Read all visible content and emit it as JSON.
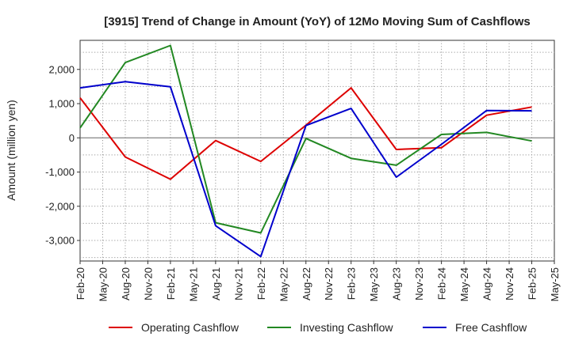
{
  "chart_data": {
    "type": "line",
    "title": "[3915]  Trend of Change in Amount (YoY) of 12Mo Moving Sum of Cashflows",
    "xlabel": "",
    "ylabel": "Amount (million yen)",
    "ylim": [
      -3600,
      2850
    ],
    "yticks": [
      2000,
      1000,
      0,
      -1000,
      -2000,
      -3000
    ],
    "ytick_labels": [
      "2,000",
      "1,000",
      "0",
      "-1,000",
      "-2,000",
      "-3,000"
    ],
    "x_labels": [
      "Feb-20",
      "May-20",
      "Aug-20",
      "Nov-20",
      "Feb-21",
      "May-21",
      "Aug-21",
      "Nov-21",
      "Feb-22",
      "May-22",
      "Aug-22",
      "Nov-22",
      "Feb-23",
      "May-23",
      "Aug-23",
      "Nov-23",
      "Feb-24",
      "May-24",
      "Aug-24",
      "Nov-24",
      "Feb-25",
      "May-25"
    ],
    "x_data_labels": [
      "Feb-20",
      "Aug-20",
      "Feb-21",
      "Aug-21",
      "Feb-22",
      "Aug-22",
      "Feb-23",
      "Aug-23",
      "Feb-24",
      "Aug-24",
      "Feb-25"
    ],
    "grid": true,
    "legend_position": "bottom",
    "series": [
      {
        "name": "Operating Cashflow",
        "color": "#dd0000",
        "values": [
          1170,
          -560,
          -1210,
          -80,
          -690,
          370,
          1460,
          -340,
          -290,
          660,
          900
        ]
      },
      {
        "name": "Investing Cashflow",
        "color": "#228822",
        "values": [
          290,
          2200,
          2700,
          -2480,
          -2780,
          -20,
          -600,
          -800,
          100,
          160,
          -90
        ]
      },
      {
        "name": "Free Cashflow",
        "color": "#0000cc",
        "values": [
          1460,
          1640,
          1490,
          -2570,
          -3470,
          360,
          860,
          -1150,
          -190,
          800,
          790
        ]
      }
    ]
  }
}
